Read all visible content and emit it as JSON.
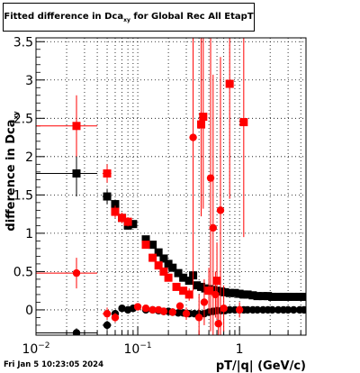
{
  "title": {
    "main": "Fitted difference in Dca",
    "subscript": "xy",
    "suffix": " for Global Rec All EtapT"
  },
  "timestamp": "Fri Jan  5 10:23:05 2024",
  "chart_data": {
    "type": "scatter",
    "title": "Fitted difference in Dca_xy for Global Rec All EtapT",
    "xlabel": "pT/|q| (GeV/c)",
    "ylabel": "difference in Dca_xy",
    "xscale": "log",
    "xlim": [
      0.01,
      4.5
    ],
    "ylim": [
      -0.33,
      3.55
    ],
    "x_tick_labels": [
      "10^-2",
      "10^-1",
      "1"
    ],
    "y_ticks": [
      0,
      0.5,
      1,
      1.5,
      2,
      2.5,
      3,
      3.5
    ],
    "grid": true,
    "colors": {
      "black_series": "#000000",
      "red_series": "#ff0000"
    },
    "series": [
      {
        "marker": "square",
        "color": "#000000",
        "points": [
          {
            "x": 0.025,
            "y": 1.78,
            "xerr": 0.015,
            "yerr": 0.3
          },
          {
            "x": 0.05,
            "y": 1.48,
            "xerr": 0.005,
            "yerr": 0.1
          },
          {
            "x": 0.06,
            "y": 1.38,
            "xerr": 0.004,
            "yerr": 0.06
          },
          {
            "x": 0.07,
            "y": 1.2,
            "xerr": 0.005,
            "yerr": 0.05
          },
          {
            "x": 0.08,
            "y": 1.1,
            "xerr": 0.005,
            "yerr": 0.04
          },
          {
            "x": 0.09,
            "y": 1.12,
            "xerr": 0.005,
            "yerr": 0.04
          },
          {
            "x": 0.12,
            "y": 0.92,
            "xerr": 0.008,
            "yerr": 0.03
          },
          {
            "x": 0.14,
            "y": 0.85,
            "xerr": 0.008,
            "yerr": 0.03
          },
          {
            "x": 0.16,
            "y": 0.75,
            "xerr": 0.008,
            "yerr": 0.03
          },
          {
            "x": 0.18,
            "y": 0.67,
            "xerr": 0.008,
            "yerr": 0.03
          },
          {
            "x": 0.2,
            "y": 0.6,
            "xerr": 0.008,
            "yerr": 0.03
          },
          {
            "x": 0.22,
            "y": 0.55,
            "xerr": 0.008,
            "yerr": 0.03
          },
          {
            "x": 0.25,
            "y": 0.48,
            "xerr": 0.01,
            "yerr": 0.03
          },
          {
            "x": 0.28,
            "y": 0.42,
            "xerr": 0.01,
            "yerr": 0.03
          },
          {
            "x": 0.32,
            "y": 0.38,
            "xerr": 0.01,
            "yerr": 0.03
          },
          {
            "x": 0.35,
            "y": 0.45,
            "xerr": 0.01,
            "yerr": 0.03
          },
          {
            "x": 0.38,
            "y": 0.32,
            "xerr": 0.01,
            "yerr": 0.03
          },
          {
            "x": 0.42,
            "y": 0.3,
            "xerr": 0.01,
            "yerr": 0.03
          },
          {
            "x": 0.46,
            "y": 0.28,
            "xerr": 0.01,
            "yerr": 0.03
          },
          {
            "x": 0.5,
            "y": 0.27,
            "xerr": 0.01,
            "yerr": 0.03
          },
          {
            "x": 0.55,
            "y": 0.26,
            "xerr": 0.015,
            "yerr": 0.03
          },
          {
            "x": 0.6,
            "y": 0.25,
            "xerr": 0.015,
            "yerr": 0.03
          },
          {
            "x": 0.66,
            "y": 0.24,
            "xerr": 0.015,
            "yerr": 0.03
          },
          {
            "x": 0.72,
            "y": 0.23,
            "xerr": 0.015,
            "yerr": 0.03
          },
          {
            "x": 0.8,
            "y": 0.22,
            "xerr": 0.02,
            "yerr": 0.03
          },
          {
            "x": 0.9,
            "y": 0.22,
            "xerr": 0.02,
            "yerr": 0.03
          },
          {
            "x": 1.0,
            "y": 0.21,
            "xerr": 0.03,
            "yerr": 0.03
          },
          {
            "x": 1.1,
            "y": 0.2,
            "xerr": 0.03,
            "yerr": 0.03
          },
          {
            "x": 1.2,
            "y": 0.2,
            "xerr": 0.03,
            "yerr": 0.03
          },
          {
            "x": 1.35,
            "y": 0.19,
            "xerr": 0.04,
            "yerr": 0.03
          },
          {
            "x": 1.5,
            "y": 0.18,
            "xerr": 0.05,
            "yerr": 0.03
          },
          {
            "x": 1.7,
            "y": 0.18,
            "xerr": 0.05,
            "yerr": 0.03
          },
          {
            "x": 1.9,
            "y": 0.18,
            "xerr": 0.06,
            "yerr": 0.03
          },
          {
            "x": 2.1,
            "y": 0.17,
            "xerr": 0.06,
            "yerr": 0.03
          },
          {
            "x": 2.4,
            "y": 0.17,
            "xerr": 0.07,
            "yerr": 0.03
          },
          {
            "x": 2.7,
            "y": 0.17,
            "xerr": 0.08,
            "yerr": 0.03
          },
          {
            "x": 3.0,
            "y": 0.17,
            "xerr": 0.09,
            "yerr": 0.03
          },
          {
            "x": 3.4,
            "y": 0.17,
            "xerr": 0.1,
            "yerr": 0.03
          },
          {
            "x": 3.9,
            "y": 0.17,
            "xerr": 0.1,
            "yerr": 0.03
          },
          {
            "x": 4.3,
            "y": 0.17,
            "xerr": 0.1,
            "yerr": 0.03
          }
        ]
      },
      {
        "marker": "circle",
        "color": "#000000",
        "points": [
          {
            "x": 0.025,
            "y": -0.3,
            "xerr": 0.015,
            "yerr": 0.06
          },
          {
            "x": 0.05,
            "y": -0.2,
            "xerr": 0.005,
            "yerr": 0.06
          },
          {
            "x": 0.06,
            "y": -0.05,
            "xerr": 0.004,
            "yerr": 0.05
          },
          {
            "x": 0.07,
            "y": 0.02,
            "xerr": 0.005,
            "yerr": 0.04
          },
          {
            "x": 0.08,
            "y": 0.0,
            "xerr": 0.005,
            "yerr": 0.04
          },
          {
            "x": 0.09,
            "y": 0.02,
            "xerr": 0.005,
            "yerr": 0.04
          },
          {
            "x": 0.12,
            "y": 0.0,
            "xerr": 0.008,
            "yerr": 0.03
          },
          {
            "x": 0.14,
            "y": 0.0,
            "xerr": 0.008,
            "yerr": 0.03
          },
          {
            "x": 0.16,
            "y": -0.01,
            "xerr": 0.008,
            "yerr": 0.03
          },
          {
            "x": 0.18,
            "y": -0.02,
            "xerr": 0.008,
            "yerr": 0.03
          },
          {
            "x": 0.2,
            "y": -0.02,
            "xerr": 0.008,
            "yerr": 0.03
          },
          {
            "x": 0.22,
            "y": -0.03,
            "xerr": 0.008,
            "yerr": 0.03
          },
          {
            "x": 0.25,
            "y": -0.04,
            "xerr": 0.01,
            "yerr": 0.03
          },
          {
            "x": 0.28,
            "y": -0.04,
            "xerr": 0.01,
            "yerr": 0.03
          },
          {
            "x": 0.32,
            "y": -0.05,
            "xerr": 0.01,
            "yerr": 0.03
          },
          {
            "x": 0.36,
            "y": -0.05,
            "xerr": 0.01,
            "yerr": 0.03
          },
          {
            "x": 0.4,
            "y": -0.05,
            "xerr": 0.01,
            "yerr": 0.03
          },
          {
            "x": 0.45,
            "y": -0.05,
            "xerr": 0.01,
            "yerr": 0.03
          },
          {
            "x": 0.5,
            "y": -0.03,
            "xerr": 0.01,
            "yerr": 0.03
          },
          {
            "x": 0.55,
            "y": -0.02,
            "xerr": 0.015,
            "yerr": 0.03
          },
          {
            "x": 0.6,
            "y": -0.01,
            "xerr": 0.015,
            "yerr": 0.03
          },
          {
            "x": 0.66,
            "y": -0.01,
            "xerr": 0.015,
            "yerr": 0.03
          },
          {
            "x": 0.72,
            "y": -0.01,
            "xerr": 0.015,
            "yerr": 0.03
          },
          {
            "x": 0.8,
            "y": 0.0,
            "xerr": 0.02,
            "yerr": 0.03
          },
          {
            "x": 0.9,
            "y": 0.0,
            "xerr": 0.02,
            "yerr": 0.03
          },
          {
            "x": 1.0,
            "y": 0.0,
            "xerr": 0.03,
            "yerr": 0.03
          },
          {
            "x": 1.1,
            "y": 0.0,
            "xerr": 0.03,
            "yerr": 0.03
          },
          {
            "x": 1.2,
            "y": 0.0,
            "xerr": 0.03,
            "yerr": 0.03
          },
          {
            "x": 1.35,
            "y": 0.0,
            "xerr": 0.04,
            "yerr": 0.03
          },
          {
            "x": 1.5,
            "y": 0.0,
            "xerr": 0.05,
            "yerr": 0.03
          },
          {
            "x": 1.7,
            "y": 0.0,
            "xerr": 0.05,
            "yerr": 0.03
          },
          {
            "x": 1.9,
            "y": 0.0,
            "xerr": 0.06,
            "yerr": 0.03
          },
          {
            "x": 2.1,
            "y": 0.0,
            "xerr": 0.06,
            "yerr": 0.03
          },
          {
            "x": 2.4,
            "y": 0.0,
            "xerr": 0.07,
            "yerr": 0.03
          },
          {
            "x": 2.7,
            "y": 0.0,
            "xerr": 0.08,
            "yerr": 0.03
          },
          {
            "x": 3.0,
            "y": 0.0,
            "xerr": 0.09,
            "yerr": 0.03
          },
          {
            "x": 3.4,
            "y": 0.0,
            "xerr": 0.1,
            "yerr": 0.03
          },
          {
            "x": 3.9,
            "y": 0.0,
            "xerr": 0.1,
            "yerr": 0.03
          },
          {
            "x": 4.3,
            "y": 0.0,
            "xerr": 0.1,
            "yerr": 0.03
          }
        ]
      },
      {
        "marker": "square",
        "color": "#ff0000",
        "points": [
          {
            "x": 0.025,
            "y": 2.4,
            "xerr": 0.015,
            "yerr": 0.4
          },
          {
            "x": 0.05,
            "y": 1.78,
            "xerr": 0.005,
            "yerr": 0.12
          },
          {
            "x": 0.06,
            "y": 1.28,
            "xerr": 0.004,
            "yerr": 0.08
          },
          {
            "x": 0.07,
            "y": 1.2,
            "xerr": 0.005,
            "yerr": 0.07
          },
          {
            "x": 0.08,
            "y": 1.15,
            "xerr": 0.005,
            "yerr": 0.06
          },
          {
            "x": 0.12,
            "y": 0.85,
            "xerr": 0.008,
            "yerr": 0.05
          },
          {
            "x": 0.14,
            "y": 0.68,
            "xerr": 0.008,
            "yerr": 0.05
          },
          {
            "x": 0.16,
            "y": 0.58,
            "xerr": 0.008,
            "yerr": 0.05
          },
          {
            "x": 0.18,
            "y": 0.5,
            "xerr": 0.008,
            "yerr": 0.05
          },
          {
            "x": 0.2,
            "y": 0.42,
            "xerr": 0.008,
            "yerr": 0.05
          },
          {
            "x": 0.24,
            "y": 0.3,
            "xerr": 0.01,
            "yerr": 0.05
          },
          {
            "x": 0.28,
            "y": 0.25,
            "xerr": 0.01,
            "yerr": 0.05
          },
          {
            "x": 0.32,
            "y": 0.2,
            "xerr": 0.01,
            "yerr": 0.08
          },
          {
            "x": 0.42,
            "y": 2.42,
            "xerr": 0.01,
            "yerr": 1.2
          },
          {
            "x": 0.44,
            "y": 2.52,
            "xerr": 0.01,
            "yerr": 1.2
          },
          {
            "x": 0.5,
            "y": 0.25,
            "xerr": 0.015,
            "yerr": 0.3
          },
          {
            "x": 0.6,
            "y": 0.38,
            "xerr": 0.015,
            "yerr": 0.5
          },
          {
            "x": 0.8,
            "y": 2.95,
            "xerr": 0.02,
            "yerr": 1.5
          },
          {
            "x": 1.1,
            "y": 2.45,
            "xerr": 0.03,
            "yerr": 1.5
          }
        ]
      },
      {
        "marker": "circle",
        "color": "#ff0000",
        "points": [
          {
            "x": 0.025,
            "y": 0.48,
            "xerr": 0.015,
            "yerr": 0.2
          },
          {
            "x": 0.05,
            "y": -0.05,
            "xerr": 0.005,
            "yerr": 0.08
          },
          {
            "x": 0.06,
            "y": -0.1,
            "xerr": 0.004,
            "yerr": 0.06
          },
          {
            "x": 0.1,
            "y": 0.04,
            "xerr": 0.008,
            "yerr": 0.04
          },
          {
            "x": 0.12,
            "y": 0.02,
            "xerr": 0.008,
            "yerr": 0.04
          },
          {
            "x": 0.14,
            "y": 0.0,
            "xerr": 0.008,
            "yerr": 0.04
          },
          {
            "x": 0.16,
            "y": 0.0,
            "xerr": 0.008,
            "yerr": 0.04
          },
          {
            "x": 0.18,
            "y": -0.02,
            "xerr": 0.008,
            "yerr": 0.05
          },
          {
            "x": 0.22,
            "y": -0.03,
            "xerr": 0.01,
            "yerr": 0.05
          },
          {
            "x": 0.26,
            "y": 0.05,
            "xerr": 0.01,
            "yerr": 0.05
          },
          {
            "x": 0.3,
            "y": -0.05,
            "xerr": 0.01,
            "yerr": 0.08
          },
          {
            "x": 0.35,
            "y": 2.25,
            "xerr": 0.01,
            "yerr": 2.0
          },
          {
            "x": 0.4,
            "y": -0.1,
            "xerr": 0.01,
            "yerr": 0.3
          },
          {
            "x": 0.45,
            "y": 0.1,
            "xerr": 0.01,
            "yerr": 0.3
          },
          {
            "x": 0.52,
            "y": 1.72,
            "xerr": 0.015,
            "yerr": 2.0
          },
          {
            "x": 0.55,
            "y": 1.07,
            "xerr": 0.015,
            "yerr": 2.0
          },
          {
            "x": 0.58,
            "y": 0.2,
            "xerr": 0.015,
            "yerr": 0.3
          },
          {
            "x": 0.62,
            "y": -0.18,
            "xerr": 0.015,
            "yerr": 0.4
          },
          {
            "x": 0.65,
            "y": 1.3,
            "xerr": 0.015,
            "yerr": 2.0
          },
          {
            "x": 0.7,
            "y": 0.02,
            "xerr": 0.015,
            "yerr": 0.3
          },
          {
            "x": 1.0,
            "y": 0.0,
            "xerr": 0.03,
            "yerr": 0.1
          }
        ]
      }
    ]
  }
}
